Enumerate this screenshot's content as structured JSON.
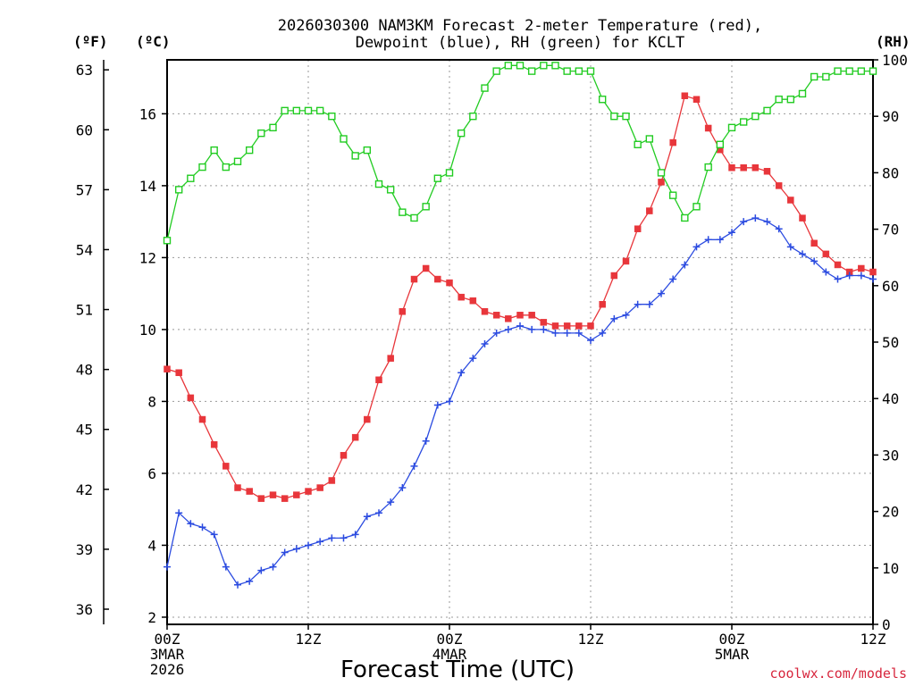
{
  "chart_data": {
    "type": "line",
    "title_line1": "2026030300 NAM3KM Forecast 2-meter Temperature (red),",
    "title_line2": "Dewpoint (blue), RH (green) for KCLT",
    "xlabel": "Forecast Time (UTC)",
    "credit": "coolwx.com/models",
    "units": {
      "fahrenheit": "(ºF)",
      "celsius": "(ºC)",
      "rh": "(RH)"
    },
    "x_range_hours": [
      0,
      60
    ],
    "celsius_range": [
      1.8,
      17.5
    ],
    "rh_range": [
      0,
      100
    ],
    "celsius_ticks": [
      "2",
      "4",
      "6",
      "8",
      "10",
      "12",
      "14",
      "16"
    ],
    "fahrenheit_ticks": [
      "36",
      "39",
      "42",
      "45",
      "48",
      "51",
      "54",
      "57",
      "60",
      "63"
    ],
    "rh_ticks": [
      "0",
      "10",
      "20",
      "30",
      "40",
      "50",
      "60",
      "70",
      "80",
      "90",
      "100"
    ],
    "x_ticks": [
      {
        "hour": 0,
        "label": "00Z",
        "date": "3MAR",
        "year": "2026"
      },
      {
        "hour": 12,
        "label": "12Z",
        "date": "",
        "year": ""
      },
      {
        "hour": 24,
        "label": "00Z",
        "date": "4MAR",
        "year": ""
      },
      {
        "hour": 36,
        "label": "12Z",
        "date": "",
        "year": ""
      },
      {
        "hour": 48,
        "label": "00Z",
        "date": "5MAR",
        "year": ""
      },
      {
        "hour": 60,
        "label": "12Z",
        "date": "",
        "year": ""
      }
    ],
    "series": [
      {
        "name": "Temperature",
        "unit": "C",
        "color": "#e8363b",
        "marker": "filled-square",
        "values": [
          8.9,
          8.8,
          8.1,
          7.5,
          6.8,
          6.2,
          5.6,
          5.5,
          5.3,
          5.4,
          5.3,
          5.4,
          5.5,
          5.6,
          5.8,
          6.5,
          7.0,
          7.5,
          8.6,
          9.2,
          10.5,
          11.4,
          11.7,
          11.4,
          11.3,
          10.9,
          10.8,
          10.5,
          10.4,
          10.3,
          10.4,
          10.4,
          10.2,
          10.1,
          10.1,
          10.1,
          10.1,
          10.7,
          11.5,
          11.9,
          12.8,
          13.3,
          14.1,
          15.2,
          16.5,
          16.4,
          15.6,
          15.0,
          14.5,
          14.5,
          14.5,
          14.4,
          14.0,
          13.6,
          13.1,
          12.4,
          12.1,
          11.8,
          11.6,
          11.7,
          11.6
        ]
      },
      {
        "name": "Dewpoint",
        "unit": "C",
        "color": "#2b4be0",
        "marker": "plus",
        "values": [
          3.4,
          4.9,
          4.6,
          4.5,
          4.3,
          3.4,
          2.9,
          3.0,
          3.3,
          3.4,
          3.8,
          3.9,
          4.0,
          4.1,
          4.2,
          4.2,
          4.3,
          4.8,
          4.9,
          5.2,
          5.6,
          6.2,
          6.9,
          7.9,
          8.0,
          8.8,
          9.2,
          9.6,
          9.9,
          10.0,
          10.1,
          10.0,
          10.0,
          9.9,
          9.9,
          9.9,
          9.7,
          9.9,
          10.3,
          10.4,
          10.7,
          10.7,
          11.0,
          11.4,
          11.8,
          12.3,
          12.5,
          12.5,
          12.7,
          13.0,
          13.1,
          13.0,
          12.8,
          12.3,
          12.1,
          11.9,
          11.6,
          11.4,
          11.5,
          11.5,
          11.4
        ]
      },
      {
        "name": "RH",
        "unit": "%",
        "color": "#22cc22",
        "marker": "open-square",
        "values": [
          68,
          77,
          79,
          81,
          84,
          81,
          82,
          84,
          87,
          88,
          91,
          91,
          91,
          91,
          90,
          86,
          83,
          84,
          78,
          77,
          73,
          72,
          74,
          79,
          80,
          87,
          90,
          95,
          98,
          99,
          99,
          98,
          99,
          99,
          98,
          98,
          98,
          93,
          90,
          90,
          85,
          86,
          80,
          76,
          72,
          74,
          81,
          85,
          88,
          89,
          90,
          91,
          93,
          93,
          94,
          97,
          97,
          98,
          98,
          98,
          98
        ]
      }
    ]
  }
}
